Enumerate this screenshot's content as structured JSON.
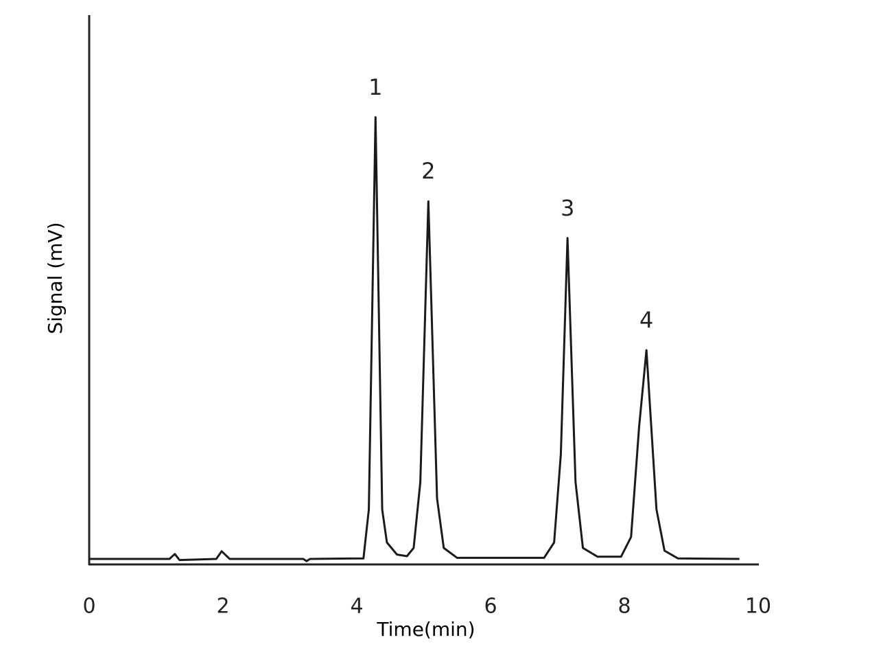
{
  "chart_data": {
    "type": "line",
    "x_label": "Time(min)",
    "y_label": "Signal (mV)",
    "x": [
      0,
      1.2,
      1.28,
      1.35,
      1.9,
      1.98,
      2.1,
      3.2,
      3.25,
      3.3,
      4.1,
      4.18,
      4.28,
      4.38,
      4.45,
      4.6,
      4.75,
      4.85,
      4.95,
      5.07,
      5.2,
      5.3,
      5.5,
      6.8,
      6.95,
      7.05,
      7.15,
      7.27,
      7.38,
      7.6,
      7.95,
      8.1,
      8.22,
      8.33,
      8.48,
      8.6,
      8.8,
      9.72
    ],
    "values": [
      1,
      1,
      1.9,
      0.8,
      1,
      2.4,
      1,
      1,
      0.6,
      1,
      1.1,
      10,
      81.4,
      10,
      4,
      1.8,
      1.5,
      3,
      15,
      66.1,
      12,
      3,
      1.2,
      1.2,
      4,
      20,
      59.4,
      15,
      3,
      1.4,
      1.4,
      5,
      25,
      39,
      10,
      2.5,
      1.1,
      1
    ],
    "color": "#1a1a1a",
    "annotations": [
      {
        "text": "1",
        "x": 4.28,
        "y": 81.4
      },
      {
        "text": "2",
        "x": 5.07,
        "y": 66.1
      },
      {
        "text": "3",
        "x": 7.15,
        "y": 59.4
      },
      {
        "text": "4",
        "x": 8.33,
        "y": 39
      }
    ],
    "xlim": [
      0,
      10
    ],
    "xticks": [
      0,
      2,
      4,
      6,
      8,
      10
    ],
    "ylim": [
      0,
      100
    ]
  }
}
